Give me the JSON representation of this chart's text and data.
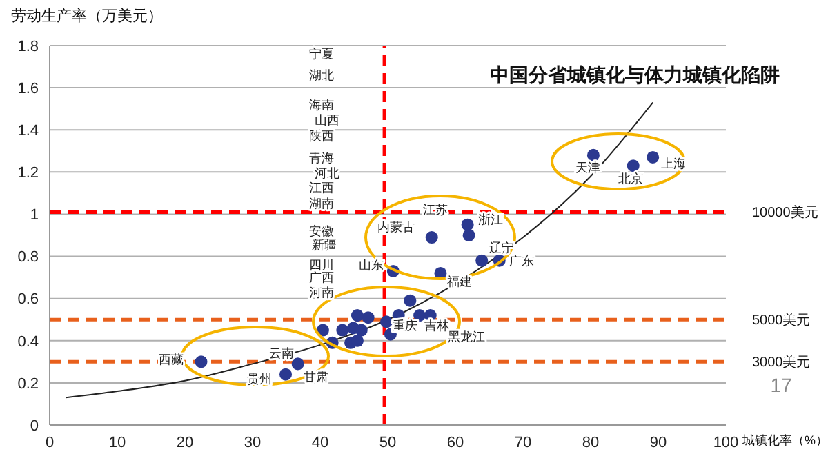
{
  "chart_data": {
    "type": "scatter",
    "title": "中国分省城镇化与体力城镇化陷阱",
    "xlabel": "城镇化率（%）",
    "ylabel": "劳动生产率（万美元）",
    "xlim": [
      0,
      100
    ],
    "xticks": [
      0,
      10,
      20,
      30,
      40,
      50,
      60,
      70,
      80,
      90,
      100
    ],
    "ylim": [
      0,
      1.8
    ],
    "yticks": [
      0,
      0.2,
      0.4,
      0.6,
      0.8,
      1,
      1.2,
      1.4,
      1.6,
      1.8
    ],
    "grid": "y",
    "marker": "circle",
    "series": [
      {
        "type": "scatter",
        "color": "#2b3990",
        "x": [
          89.2,
          86.3,
          80.4,
          61.8,
          62.0,
          56.5,
          63.9,
          66.5,
          57.8,
          50.8,
          53.3,
          54.7,
          56.3,
          51.6,
          49.8,
          50.4,
          47.1,
          45.5,
          46.1,
          44.9,
          43.3,
          40.4,
          41.8,
          44.5,
          45.5,
          22.4,
          34.9,
          36.7
        ],
        "values": [
          1.27,
          1.23,
          1.28,
          0.95,
          0.9,
          0.89,
          0.78,
          0.78,
          0.72,
          0.73,
          0.59,
          0.52,
          0.52,
          0.52,
          0.49,
          0.43,
          0.51,
          0.52,
          0.45,
          0.46,
          0.45,
          0.45,
          0.39,
          0.39,
          0.4,
          0.3,
          0.24,
          0.29
        ]
      },
      {
        "type": "line",
        "color": "#222222",
        "line_style": "solid",
        "marker": "none",
        "x": [
          2.4,
          10,
          20,
          30,
          40,
          50,
          60,
          70,
          80,
          89.2
        ],
        "values": [
          0.13,
          0.16,
          0.21,
          0.29,
          0.38,
          0.5,
          0.67,
          0.89,
          1.18,
          1.53
        ]
      }
    ],
    "ref_lines": [
      {
        "axis": "y",
        "value": 1.01,
        "label": "10000美元",
        "color": "#ff0000",
        "line_style": "dashed"
      },
      {
        "axis": "y",
        "value": 0.5,
        "label": "5000美元",
        "color": "#e8601c",
        "line_style": "dashed"
      },
      {
        "axis": "y",
        "value": 0.3,
        "label": "3000美元",
        "color": "#e8601c",
        "line_style": "dashed"
      },
      {
        "axis": "x",
        "value": 49.5,
        "color": "#ff0000",
        "line_style": "dashed"
      }
    ],
    "annotations": [
      "宁夏",
      "湖北",
      "海南",
      "山西",
      "陕西",
      "青海",
      "河北",
      "江西",
      "湖南",
      "安徽",
      "新疆",
      "四川",
      "广西",
      "河南",
      "内蒙古",
      "江苏",
      "浙江",
      "辽宁",
      "广东",
      "福建",
      "山东",
      "天津",
      "北京",
      "上海",
      "重庆",
      "吉林",
      "黑龙江",
      "西藏",
      "云南",
      "贵州",
      "甘肃",
      "17"
    ]
  }
}
